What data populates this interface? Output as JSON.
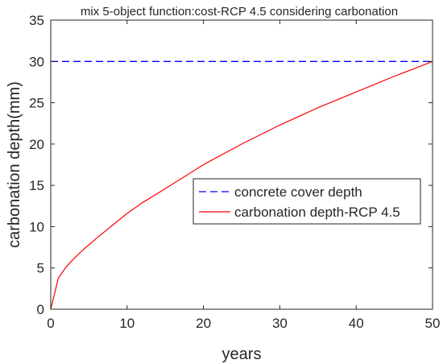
{
  "chart_data": {
    "type": "line",
    "title": "mix 5-object function:cost-RCP 4.5 considering carbonation",
    "xlabel": "years",
    "ylabel": "carbonation depth(mm)",
    "xlim": [
      0,
      50
    ],
    "ylim": [
      0,
      35
    ],
    "xticks": [
      0,
      10,
      20,
      30,
      40,
      50
    ],
    "yticks": [
      0,
      5,
      10,
      15,
      20,
      25,
      30,
      35
    ],
    "grid": false,
    "legend_position": "right",
    "series": [
      {
        "name": "concrete cover depth",
        "style": "dashed",
        "color": "#0000ff",
        "x": [
          0,
          50
        ],
        "y": [
          30,
          30
        ]
      },
      {
        "name": "carbonation depth-RCP 4.5",
        "style": "solid",
        "color": "#ff0000",
        "x": [
          0,
          1,
          2,
          3,
          4,
          5,
          6,
          8,
          10,
          12,
          15,
          20,
          25,
          30,
          35,
          40,
          45,
          50
        ],
        "y": [
          0,
          3.8,
          5.1,
          6.1,
          7.0,
          7.8,
          8.6,
          10.1,
          11.6,
          12.9,
          14.6,
          17.5,
          20.0,
          22.3,
          24.4,
          26.3,
          28.2,
          30.0
        ]
      }
    ]
  }
}
